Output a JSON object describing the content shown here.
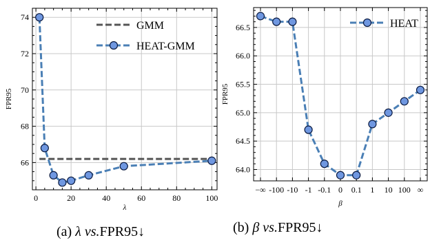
{
  "chart_data": [
    {
      "type": "line",
      "caption_prefix": "(a) ",
      "caption_var": "λ",
      "caption_mid": " vs.",
      "caption_suffix": "FPR95↓",
      "xlabel": "λ",
      "ylabel": "FPR95",
      "xlim": [
        -2,
        103
      ],
      "ylim": [
        64.5,
        74.5
      ],
      "xticks": [
        0,
        20,
        40,
        60,
        80,
        100
      ],
      "yticks": [
        66,
        68,
        70,
        72,
        74
      ],
      "grid": true,
      "legend_position": "top-right",
      "series": [
        {
          "name": "GMM",
          "style": "dashed",
          "color": "#555555",
          "marker": false,
          "x": [
            2,
            100
          ],
          "y": [
            66.2,
            66.2
          ]
        },
        {
          "name": "HEAT-GMM",
          "style": "dashed",
          "color": "#4a7fb5",
          "marker": true,
          "marker_fill": "#6f97e0",
          "x": [
            2,
            5,
            10,
            15,
            20,
            30,
            50,
            100
          ],
          "y": [
            74.0,
            66.8,
            65.3,
            64.9,
            65.0,
            65.3,
            65.8,
            66.1
          ]
        }
      ]
    },
    {
      "type": "line",
      "caption_prefix": "(b) ",
      "caption_var": "β",
      "caption_mid": " vs.",
      "caption_suffix": "FPR95↓",
      "xlabel": "β",
      "ylabel": "FPR95",
      "categories": [
        "−∞",
        "-100",
        "-10",
        "-1",
        "-0.1",
        "0",
        "0.1",
        "1",
        "10",
        "100",
        "∞"
      ],
      "ylim": [
        63.8,
        66.85
      ],
      "yticks": [
        64.0,
        64.5,
        65.0,
        65.5,
        66.0,
        66.5
      ],
      "ytick_labels": [
        "64.0",
        "64.5",
        "65.0",
        "65.5",
        "66.0",
        "66.5"
      ],
      "grid": true,
      "legend_position": "top-right",
      "series": [
        {
          "name": "HEAT",
          "style": "dashed",
          "color": "#4a7fb5",
          "marker": true,
          "marker_fill": "#6f97e0",
          "y": [
            66.7,
            66.6,
            66.6,
            64.7,
            64.1,
            63.9,
            63.9,
            64.8,
            65.0,
            65.2,
            65.4
          ]
        }
      ]
    }
  ]
}
